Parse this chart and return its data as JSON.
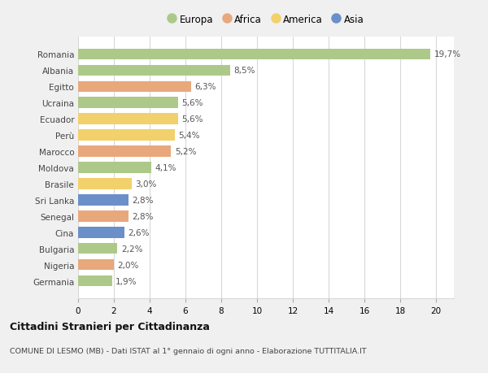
{
  "countries": [
    "Romania",
    "Albania",
    "Egitto",
    "Ucraina",
    "Ecuador",
    "Perù",
    "Marocco",
    "Moldova",
    "Brasile",
    "Sri Lanka",
    "Senegal",
    "Cina",
    "Bulgaria",
    "Nigeria",
    "Germania"
  ],
  "values": [
    19.7,
    8.5,
    6.3,
    5.6,
    5.6,
    5.4,
    5.2,
    4.1,
    3.0,
    2.8,
    2.8,
    2.6,
    2.2,
    2.0,
    1.9
  ],
  "labels": [
    "19,7%",
    "8,5%",
    "6,3%",
    "5,6%",
    "5,6%",
    "5,4%",
    "5,2%",
    "4,1%",
    "3,0%",
    "2,8%",
    "2,8%",
    "2,6%",
    "2,2%",
    "2,0%",
    "1,9%"
  ],
  "continents": [
    "Europa",
    "Europa",
    "Africa",
    "Europa",
    "America",
    "America",
    "Africa",
    "Europa",
    "America",
    "Asia",
    "Africa",
    "Asia",
    "Europa",
    "Africa",
    "Europa"
  ],
  "colors": {
    "Europa": "#adc98a",
    "Africa": "#e8a87c",
    "America": "#f2d06b",
    "Asia": "#6b8fc9"
  },
  "xlim": [
    0,
    21
  ],
  "xticks": [
    0,
    2,
    4,
    6,
    8,
    10,
    12,
    14,
    16,
    18,
    20
  ],
  "title": "Cittadini Stranieri per Cittadinanza",
  "subtitle": "COMUNE DI LESMO (MB) - Dati ISTAT al 1° gennaio di ogni anno - Elaborazione TUTTITALIA.IT",
  "background_color": "#f0f0f0",
  "bar_background": "#ffffff",
  "grid_color": "#d8d8d8",
  "legend_order": [
    "Europa",
    "Africa",
    "America",
    "Asia"
  ]
}
